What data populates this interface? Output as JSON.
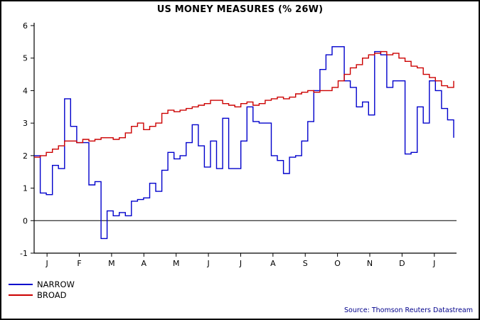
{
  "chart_data": {
    "type": "line",
    "title": "US MONEY MEASURES (% 26W)",
    "x_tick_labels": [
      "J",
      "F",
      "M",
      "A",
      "M",
      "J",
      "J",
      "A",
      "S",
      "O",
      "N",
      "D",
      "J"
    ],
    "y_ticks": [
      -1,
      0,
      1,
      2,
      3,
      4,
      5,
      6
    ],
    "ylim": [
      -1,
      6
    ],
    "grid": false,
    "zero_line": true,
    "step_interpolation": true,
    "legend_position": "bottom-left",
    "axis_color": "#000000",
    "series": [
      {
        "name": "NARROW",
        "color": "#0000cc",
        "values": [
          2.0,
          0.85,
          0.8,
          1.7,
          1.6,
          3.75,
          2.9,
          2.4,
          2.4,
          1.1,
          1.2,
          -0.55,
          0.3,
          0.15,
          0.25,
          0.15,
          0.6,
          0.65,
          0.7,
          1.15,
          0.9,
          1.55,
          2.1,
          1.9,
          2.0,
          2.4,
          2.95,
          2.3,
          1.65,
          2.45,
          1.6,
          3.15,
          1.6,
          1.6,
          2.45,
          3.5,
          3.05,
          3.0,
          3.0,
          2.0,
          1.85,
          1.45,
          1.95,
          2.0,
          2.45,
          3.05,
          4.0,
          4.65,
          5.1,
          5.35,
          5.35,
          4.3,
          4.1,
          3.5,
          3.65,
          3.25,
          5.2,
          5.1,
          4.1,
          4.3,
          4.3,
          2.05,
          2.1,
          3.5,
          3.0,
          4.3,
          4.0,
          3.45,
          3.1,
          2.55
        ]
      },
      {
        "name": "BROAD",
        "color": "#cc0000",
        "values": [
          1.95,
          2.0,
          2.1,
          2.2,
          2.3,
          2.45,
          2.45,
          2.4,
          2.5,
          2.45,
          2.5,
          2.55,
          2.55,
          2.5,
          2.55,
          2.7,
          2.9,
          3.0,
          2.8,
          2.9,
          3.0,
          3.3,
          3.4,
          3.35,
          3.4,
          3.45,
          3.5,
          3.55,
          3.6,
          3.7,
          3.7,
          3.6,
          3.55,
          3.5,
          3.6,
          3.65,
          3.55,
          3.6,
          3.7,
          3.75,
          3.8,
          3.75,
          3.8,
          3.9,
          3.95,
          4.0,
          3.95,
          4.0,
          4.0,
          4.1,
          4.3,
          4.5,
          4.7,
          4.8,
          5.0,
          5.1,
          5.15,
          5.2,
          5.1,
          5.15,
          5.0,
          4.9,
          4.75,
          4.7,
          4.5,
          4.4,
          4.3,
          4.15,
          4.1,
          4.3
        ]
      }
    ],
    "source": "Source: Thomson Reuters Datastream"
  }
}
